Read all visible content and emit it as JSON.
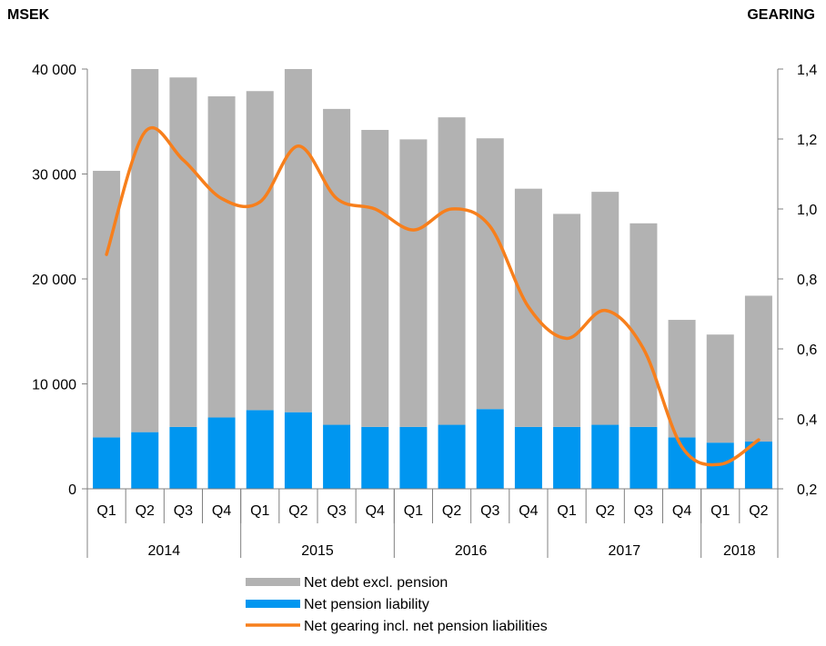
{
  "units": {
    "left": "MSEK",
    "right": "GEARING"
  },
  "colors": {
    "net_debt": "#b2b2b2",
    "pension": "#0096f0",
    "gearing": "#f77f1c",
    "axis": "#808080"
  },
  "chart_data": {
    "type": "bar",
    "stacked": true,
    "categories": [
      "Q1",
      "Q2",
      "Q3",
      "Q4",
      "Q1",
      "Q2",
      "Q3",
      "Q4",
      "Q1",
      "Q2",
      "Q3",
      "Q4",
      "Q1",
      "Q2",
      "Q3",
      "Q4",
      "Q1",
      "Q2"
    ],
    "years": [
      {
        "label": "2014",
        "count": 4
      },
      {
        "label": "2015",
        "count": 4
      },
      {
        "label": "2016",
        "count": 4
      },
      {
        "label": "2017",
        "count": 4
      },
      {
        "label": "2018",
        "count": 2
      }
    ],
    "series": [
      {
        "name": "Net pension liability",
        "type": "bar",
        "axis": "left",
        "values": [
          4900,
          5400,
          5900,
          6800,
          7500,
          7300,
          6100,
          5900,
          5900,
          6100,
          7600,
          5900,
          5900,
          6100,
          5900,
          4900,
          4400,
          4500
        ]
      },
      {
        "name": "Net debt excl. pension",
        "type": "bar",
        "axis": "left",
        "values": [
          25400,
          34600,
          33300,
          30600,
          30400,
          32700,
          30100,
          28300,
          27400,
          29300,
          25800,
          22700,
          20300,
          22200,
          19400,
          11200,
          10300,
          13900
        ]
      },
      {
        "name": "Net gearing incl. net pension liabilities",
        "type": "line",
        "axis": "right",
        "values": [
          0.87,
          1.22,
          1.14,
          1.03,
          1.02,
          1.18,
          1.03,
          1.0,
          0.94,
          1.0,
          0.95,
          0.72,
          0.63,
          0.71,
          0.6,
          0.32,
          0.27,
          0.34
        ]
      }
    ],
    "y_left": {
      "min": 0,
      "max": 40000,
      "ticks": [
        "0",
        "10 000",
        "20 000",
        "30 000",
        "40 000"
      ]
    },
    "y_right": {
      "min": 0.2,
      "max": 1.4,
      "ticks": [
        "0,2",
        "0,4",
        "0,6",
        "0,8",
        "1,0",
        "1,2",
        "1,4"
      ]
    },
    "legend": {
      "position": "bottom",
      "entries": [
        "Net debt excl. pension",
        "Net pension liability",
        "Net gearing incl. net pension liabilities"
      ]
    }
  }
}
